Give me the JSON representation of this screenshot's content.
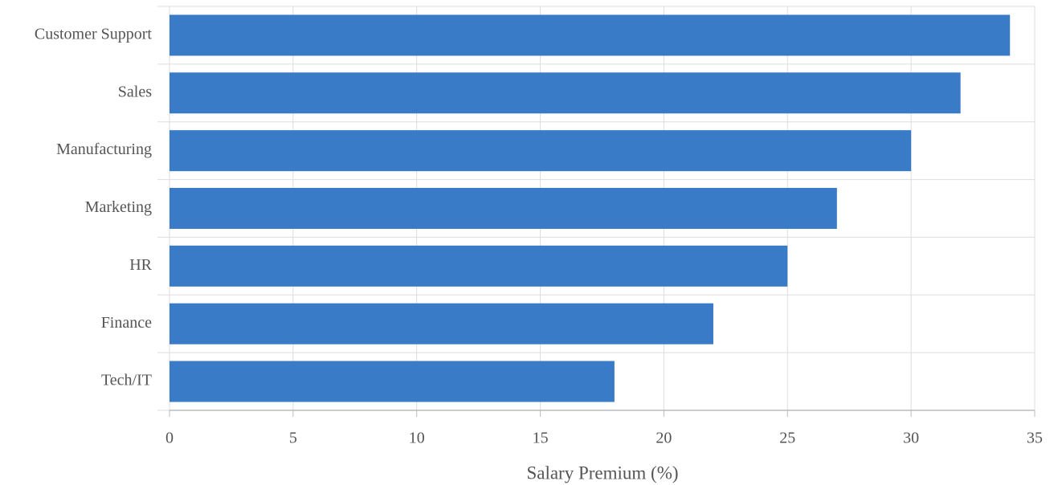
{
  "chart_data": {
    "type": "barh",
    "categories": [
      "Customer Support",
      "Sales",
      "Manufacturing",
      "Marketing",
      "HR",
      "Finance",
      "Tech/IT"
    ],
    "values": [
      34,
      32,
      30,
      27,
      25,
      22,
      18
    ],
    "color": "#3a7bc8",
    "xlabel": "Salary Premium (%)",
    "xlim": [
      0,
      35
    ],
    "xticks": [
      0,
      5,
      10,
      15,
      20,
      25,
      30,
      35
    ],
    "grid": true
  }
}
